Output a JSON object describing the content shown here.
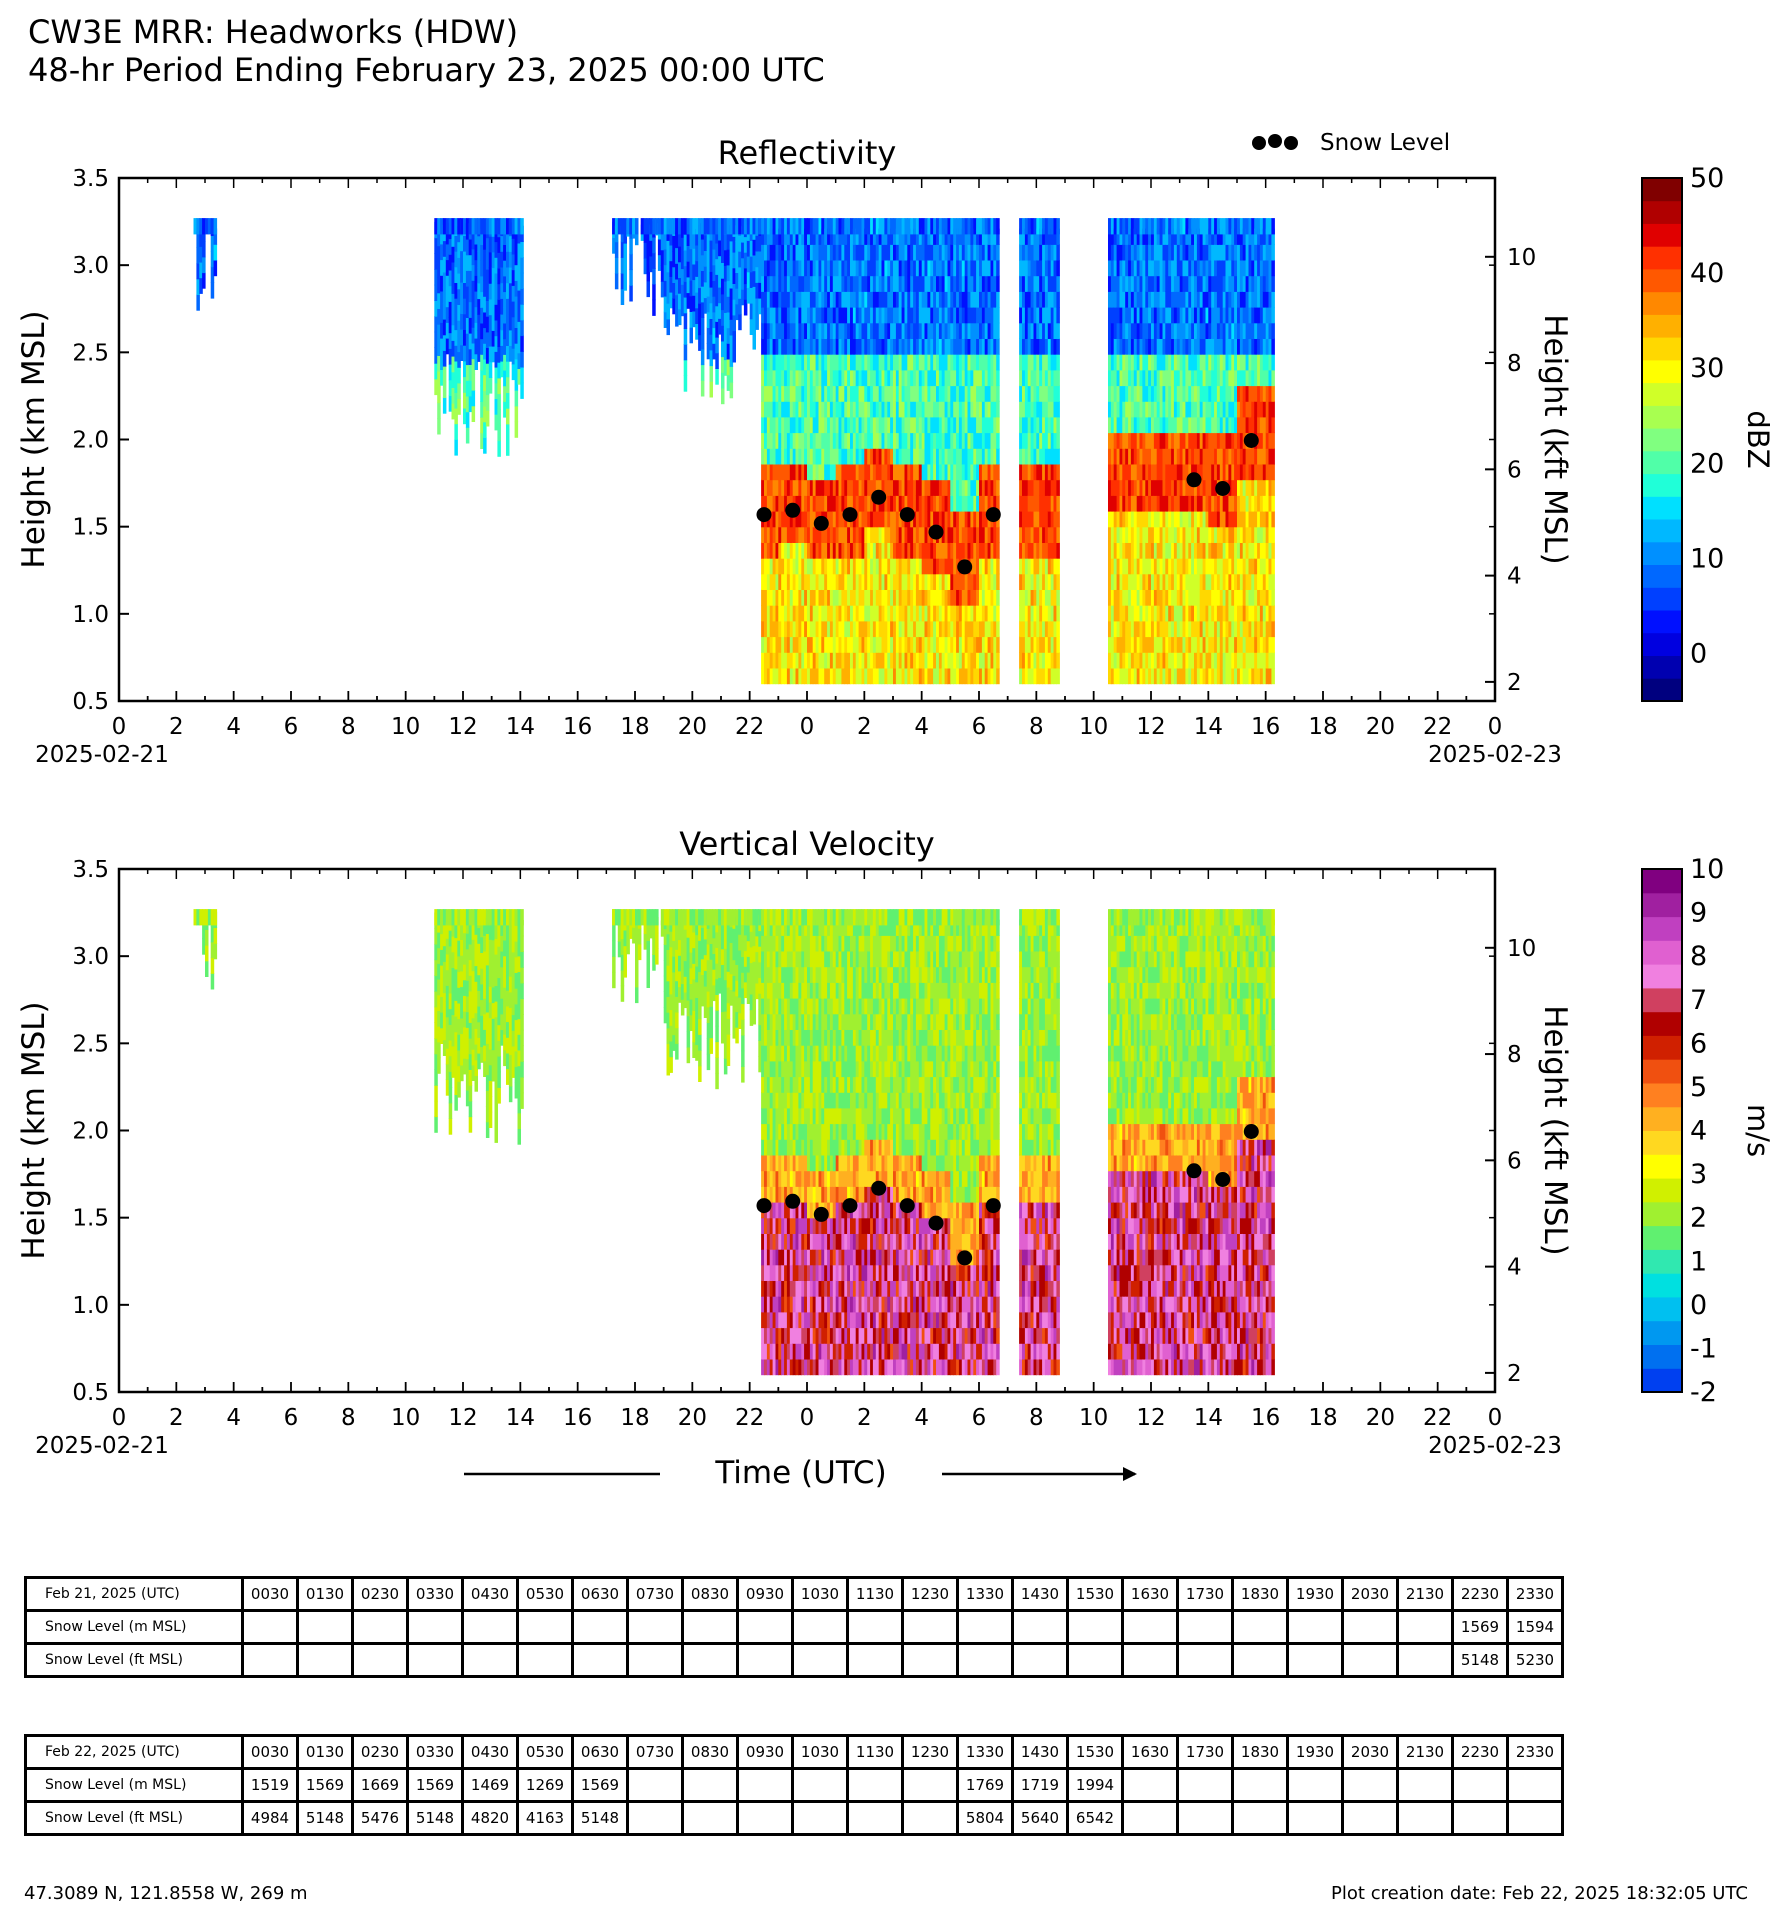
{
  "header": {
    "line1": "CW3E MRR: Headworks (HDW)",
    "line2": "48-hr Period Ending February 23, 2025 00:00 UTC"
  },
  "legend": {
    "snow_level_label": "Snow Level"
  },
  "footer": {
    "location": "47.3089 N, 121.8558 W, 269 m",
    "creation": "Plot creation date: Feb 22, 2025 18:32:05 UTC"
  },
  "xaxis": {
    "title": "Time (UTC)",
    "tick_labels": [
      "0",
      "2",
      "4",
      "6",
      "8",
      "10",
      "12",
      "14",
      "16",
      "18",
      "20",
      "22",
      "0",
      "2",
      "4",
      "6",
      "8",
      "10",
      "12",
      "14",
      "16",
      "18",
      "20",
      "22",
      "0"
    ],
    "start_date": "2025-02-21",
    "end_date": "2025-02-23"
  },
  "chart_data": [
    {
      "type": "heatmap",
      "title": "Reflectivity",
      "ylabel": "Height (km MSL)",
      "y2label": "Height (kft MSL)",
      "xlim_hours": [
        0,
        48
      ],
      "ylim": [
        0.5,
        3.5
      ],
      "yticks": [
        "0.5",
        "1.0",
        "1.5",
        "2.0",
        "2.5",
        "3.0",
        "3.5"
      ],
      "y2ticks": [
        "2",
        "4",
        "6",
        "8",
        "10"
      ],
      "colorbar": {
        "label": "dBZ",
        "min": -5,
        "max": 50,
        "ticks": [
          "0",
          "10",
          "20",
          "30",
          "40",
          "50"
        ],
        "colors": [
          "#00007f",
          "#0000b0",
          "#0000e0",
          "#0010ff",
          "#0040ff",
          "#0068ff",
          "#0090ff",
          "#00b8ff",
          "#00e0ff",
          "#20ffd8",
          "#50ffa8",
          "#80ff80",
          "#a8ff50",
          "#d0ff28",
          "#ffff00",
          "#ffd800",
          "#ffb000",
          "#ff8800",
          "#ff5800",
          "#ff3000",
          "#e00000",
          "#b00000",
          "#800000"
        ]
      },
      "series": [
        {
          "name": "Snow Level",
          "x_hours": [
            22.5,
            23.5,
            24.5,
            25.5,
            26.5,
            27.5,
            28.5,
            29.5,
            30.5,
            37.5,
            38.5,
            39.5
          ],
          "y_km": [
            1.569,
            1.594,
            1.519,
            1.569,
            1.669,
            1.569,
            1.469,
            1.269,
            1.569,
            1.769,
            1.719,
            1.994
          ]
        }
      ]
    },
    {
      "type": "heatmap",
      "title": "Vertical Velocity",
      "ylabel": "Height (km MSL)",
      "y2label": "Height (kft MSL)",
      "xlim_hours": [
        0,
        48
      ],
      "ylim": [
        0.5,
        3.5
      ],
      "yticks": [
        "0.5",
        "1.0",
        "1.5",
        "2.0",
        "2.5",
        "3.0",
        "3.5"
      ],
      "y2ticks": [
        "2",
        "4",
        "6",
        "8",
        "10"
      ],
      "colorbar": {
        "label": "m/s",
        "min": -2,
        "max": 10,
        "ticks": [
          "-2",
          "-1",
          "0",
          "1",
          "2",
          "3",
          "4",
          "5",
          "6",
          "7",
          "8",
          "9",
          "10"
        ],
        "colors": [
          "#0040f0",
          "#0070f0",
          "#0098f0",
          "#00c0f0",
          "#00e0e0",
          "#30e8b0",
          "#60f070",
          "#a0f030",
          "#d0f000",
          "#ffff00",
          "#ffd820",
          "#ffb020",
          "#ff8020",
          "#f05010",
          "#d02000",
          "#b00000",
          "#d04060",
          "#f080e0",
          "#e060d0",
          "#c040c0",
          "#a020a0",
          "#800080"
        ]
      },
      "series": [
        {
          "name": "Snow Level",
          "x_hours": [
            22.5,
            23.5,
            24.5,
            25.5,
            26.5,
            27.5,
            28.5,
            29.5,
            30.5,
            37.5,
            38.5,
            39.5
          ],
          "y_km": [
            1.569,
            1.594,
            1.519,
            1.569,
            1.669,
            1.569,
            1.469,
            1.269,
            1.569,
            1.769,
            1.719,
            1.994
          ]
        }
      ]
    }
  ],
  "tables": [
    {
      "date_label": "Feb 21, 2025 (UTC)",
      "times": [
        "0030",
        "0130",
        "0230",
        "0330",
        "0430",
        "0530",
        "0630",
        "0730",
        "0830",
        "0930",
        "1030",
        "1130",
        "1230",
        "1330",
        "1430",
        "1530",
        "1630",
        "1730",
        "1830",
        "1930",
        "2030",
        "2130",
        "2230",
        "2330"
      ],
      "m_label": "Snow Level (m MSL)",
      "m_values": [
        "",
        "",
        "",
        "",
        "",
        "",
        "",
        "",
        "",
        "",
        "",
        "",
        "",
        "",
        "",
        "",
        "",
        "",
        "",
        "",
        "",
        "",
        "1569",
        "1594"
      ],
      "ft_label": "Snow Level (ft MSL)",
      "ft_values": [
        "",
        "",
        "",
        "",
        "",
        "",
        "",
        "",
        "",
        "",
        "",
        "",
        "",
        "",
        "",
        "",
        "",
        "",
        "",
        "",
        "",
        "",
        "5148",
        "5230"
      ]
    },
    {
      "date_label": "Feb 22, 2025 (UTC)",
      "times": [
        "0030",
        "0130",
        "0230",
        "0330",
        "0430",
        "0530",
        "0630",
        "0730",
        "0830",
        "0930",
        "1030",
        "1130",
        "1230",
        "1330",
        "1430",
        "1530",
        "1630",
        "1730",
        "1830",
        "1930",
        "2030",
        "2130",
        "2230",
        "2330"
      ],
      "m_label": "Snow Level (m MSL)",
      "m_values": [
        "1519",
        "1569",
        "1669",
        "1569",
        "1469",
        "1269",
        "1569",
        "",
        "",
        "",
        "",
        "",
        "",
        "1769",
        "1719",
        "1994",
        "",
        "",
        "",
        "",
        "",
        "",
        "",
        ""
      ],
      "ft_label": "Snow Level (ft MSL)",
      "ft_values": [
        "4984",
        "5148",
        "5476",
        "5148",
        "4820",
        "4163",
        "5148",
        "",
        "",
        "",
        "",
        "",
        "",
        "5804",
        "5640",
        "6542",
        "",
        "",
        "",
        "",
        "",
        "",
        "",
        ""
      ]
    }
  ]
}
